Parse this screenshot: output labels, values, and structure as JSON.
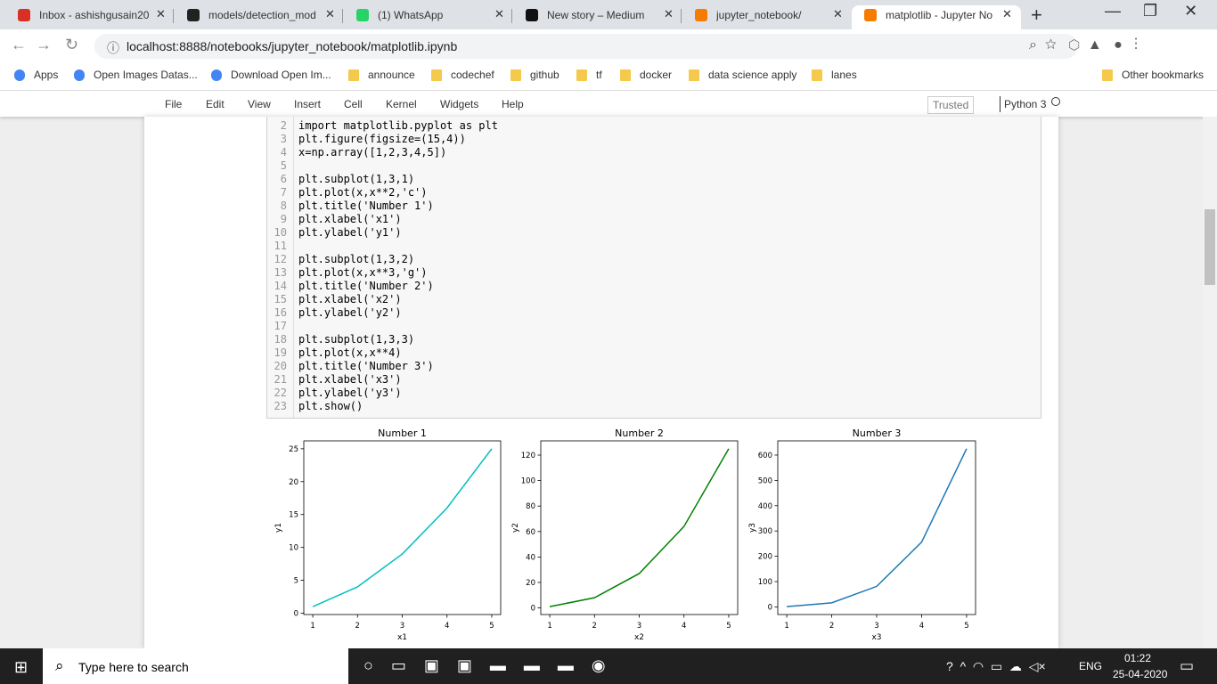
{
  "browser": {
    "tabs": [
      "Inbox - ashishgusain20",
      "models/detection_mod",
      "(1) WhatsApp",
      "New story – Medium",
      "jupyter_notebook/",
      "matplotlib - Jupyter No"
    ],
    "address": "localhost:8888/notebooks/jupyter_notebook/matplotlib.ipynb",
    "bookmarks": [
      "Apps",
      "Open Images Datas...",
      "Download Open Im...",
      "announce",
      "codechef",
      "github",
      "tf",
      "docker",
      "data science apply",
      "lanes",
      "Other bookmarks"
    ]
  },
  "notebook": {
    "menu": [
      "File",
      "Edit",
      "View",
      "Insert",
      "Cell",
      "Kernel",
      "Widgets",
      "Help"
    ],
    "trusted": "Trusted",
    "kernel": "Python 3",
    "code": [
      {
        "num": 2,
        "text": "import matplotlib.pyplot as plt"
      },
      {
        "num": 3,
        "text": "plt.figure(figsize=(15,4))"
      },
      {
        "num": 4,
        "text": "x=np.array([1,2,3,4,5])"
      },
      {
        "num": 5
      },
      {
        "num": 6,
        "text": "plt.subplot(1,3,1)"
      },
      {
        "num": 7,
        "text": "plt.plot(x,x**2,'c')"
      },
      {
        "num": 8,
        "text": "plt.title('Number 1')"
      },
      {
        "num": 9,
        "text": "plt.xlabel('x1')"
      },
      {
        "num": 10,
        "text": "plt.ylabel('y1')"
      },
      {
        "num": 11
      },
      {
        "num": 12,
        "text": "plt.subplot(1,3,2)"
      },
      {
        "num": 13,
        "text": "plt.plot(x,x**3,'g')"
      },
      {
        "num": 14,
        "text": "plt.title('Number 2')"
      },
      {
        "num": 15,
        "text": "plt.xlabel('x2')"
      },
      {
        "num": 16,
        "text": "plt.ylabel('y2')"
      },
      {
        "num": 17
      },
      {
        "num": 18,
        "text": "plt.subplot(1,3,3)"
      },
      {
        "num": 19,
        "text": "plt.plot(x,x**4)"
      },
      {
        "num": 20,
        "text": "plt.title('Number 3')"
      },
      {
        "num": 21,
        "text": "plt.xlabel('x3')"
      },
      {
        "num": 22,
        "text": "plt.ylabel('y3')"
      },
      {
        "num": 23,
        "text": "plt.show()"
      }
    ]
  },
  "chart_data": [
    {
      "type": "line",
      "title": "Number 1",
      "x_label": "x1",
      "y_label": "y1",
      "color": "#00bfbf",
      "x": [
        1,
        2,
        3,
        4,
        5
      ],
      "values": [
        1,
        4,
        9,
        16,
        25
      ],
      "xlim": [
        0.8,
        5.2
      ],
      "xticks": [
        1,
        2,
        3,
        4,
        5
      ],
      "ylim": [
        -0.2,
        26.2
      ],
      "yticks": [
        0,
        5,
        10,
        15,
        20,
        25
      ]
    },
    {
      "type": "line",
      "title": "Number 2",
      "x_label": "x2",
      "y_label": "y2",
      "color": "#008000",
      "x": [
        1,
        2,
        3,
        4,
        5
      ],
      "values": [
        1,
        8,
        27,
        64,
        125
      ],
      "xlim": [
        0.8,
        5.2
      ],
      "xticks": [
        1,
        2,
        3,
        4,
        5
      ],
      "ylim": [
        -5.2,
        131.2
      ],
      "yticks": [
        0,
        20,
        40,
        60,
        80,
        100,
        120
      ]
    },
    {
      "type": "line",
      "title": "Number 3",
      "x_label": "x3",
      "y_label": "y3",
      "color": "#1f77b4",
      "x": [
        1,
        2,
        3,
        4,
        5
      ],
      "values": [
        1,
        16,
        81,
        256,
        625
      ],
      "xlim": [
        0.8,
        5.2
      ],
      "xticks": [
        1,
        2,
        3,
        4,
        5
      ],
      "ylim": [
        -30.2,
        656.2
      ],
      "yticks": [
        0,
        100,
        200,
        300,
        400,
        500,
        600
      ]
    }
  ],
  "taskbar": {
    "search": "Type here to search",
    "lang": "ENG",
    "time": "01:22",
    "date": "25-04-2020"
  }
}
